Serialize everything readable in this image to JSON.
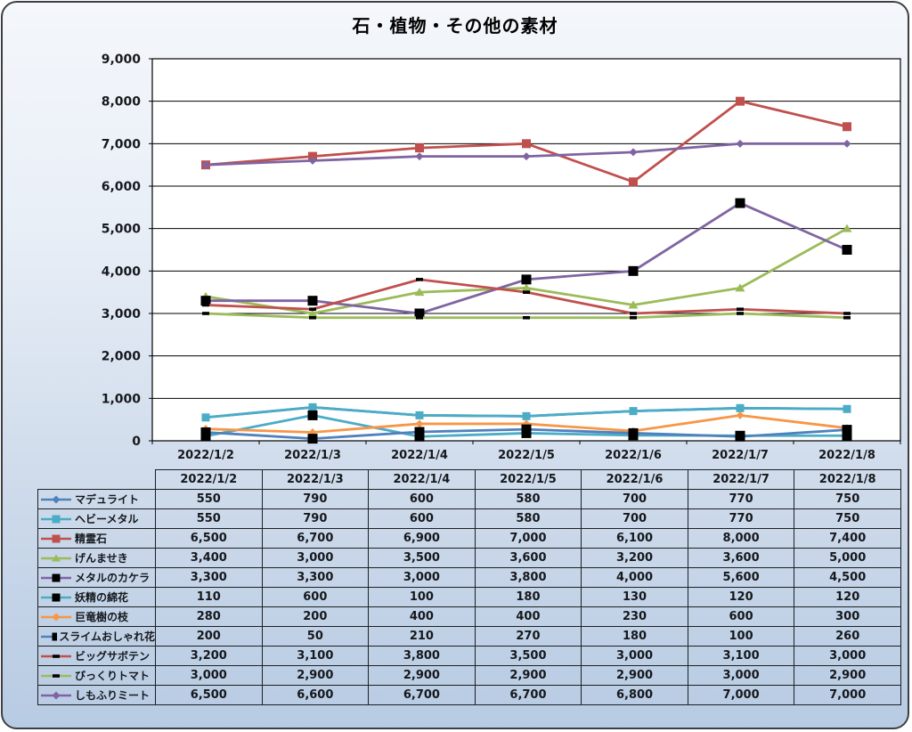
{
  "title": "石・植物・その他の素材",
  "chart_data": {
    "type": "line",
    "title": "石・植物・その他の素材",
    "categories": [
      "2022/1/2",
      "2022/1/3",
      "2022/1/4",
      "2022/1/5",
      "2022/1/6",
      "2022/1/7",
      "2022/1/8"
    ],
    "ylim": [
      0,
      9000
    ],
    "ytick_step": 1000,
    "grid": true,
    "legend_position": "table-left",
    "plot_bg": "#ffffff",
    "grid_color": "#000000",
    "series": [
      {
        "name": "マデュライト",
        "color": "#4F81BD",
        "marker": "diamond",
        "marker_color": "#4F81BD",
        "marker_size": 9,
        "values": [
          550,
          790,
          600,
          580,
          700,
          770,
          750
        ]
      },
      {
        "name": "ヘビーメタル",
        "color": "#4BACC6",
        "marker": "square",
        "marker_color": "#4BACC6",
        "marker_size": 9,
        "values": [
          550,
          790,
          600,
          580,
          700,
          770,
          750
        ]
      },
      {
        "name": "精霊石",
        "color": "#C0504D",
        "marker": "square",
        "marker_color": "#C0504D",
        "marker_size": 10,
        "values": [
          6500,
          6700,
          6900,
          7000,
          6100,
          8000,
          7400
        ]
      },
      {
        "name": "げんませき",
        "color": "#9BBB59",
        "marker": "triangle",
        "marker_color": "#9BBB59",
        "marker_size": 10,
        "values": [
          3400,
          3000,
          3500,
          3600,
          3200,
          3600,
          5000
        ]
      },
      {
        "name": "メタルのカケラ",
        "color": "#8064A2",
        "marker": "square",
        "marker_color": "#000000",
        "marker_size": 11,
        "values": [
          3300,
          3300,
          3000,
          3800,
          4000,
          5600,
          4500
        ]
      },
      {
        "name": "妖精の綿花",
        "color": "#4BACC6",
        "marker": "square",
        "marker_color": "#000000",
        "marker_size": 11,
        "values": [
          110,
          600,
          100,
          180,
          130,
          120,
          120
        ]
      },
      {
        "name": "巨竜樹の枝",
        "color": "#F79646",
        "marker": "diamond",
        "marker_color": "#F79646",
        "marker_size": 9,
        "values": [
          280,
          200,
          400,
          400,
          230,
          600,
          300
        ]
      },
      {
        "name": "スライムおしゃれ花",
        "color": "#4F81BD",
        "marker": "square",
        "marker_color": "#000000",
        "marker_size": 11,
        "values": [
          200,
          50,
          210,
          270,
          180,
          100,
          260
        ]
      },
      {
        "name": "ビッグサボテン",
        "color": "#C0504D",
        "marker": "dash",
        "marker_color": "#000000",
        "marker_size": 8,
        "values": [
          3200,
          3100,
          3800,
          3500,
          3000,
          3100,
          3000
        ]
      },
      {
        "name": "びっくりトマト",
        "color": "#9BBB59",
        "marker": "dash",
        "marker_color": "#000000",
        "marker_size": 8,
        "values": [
          3000,
          2900,
          2900,
          2900,
          2900,
          3000,
          2900
        ]
      },
      {
        "name": "しもふりミート",
        "color": "#8064A2",
        "marker": "diamond",
        "marker_color": "#8064A2",
        "marker_size": 9,
        "values": [
          6500,
          6600,
          6700,
          6700,
          6800,
          7000,
          7000
        ]
      }
    ]
  }
}
